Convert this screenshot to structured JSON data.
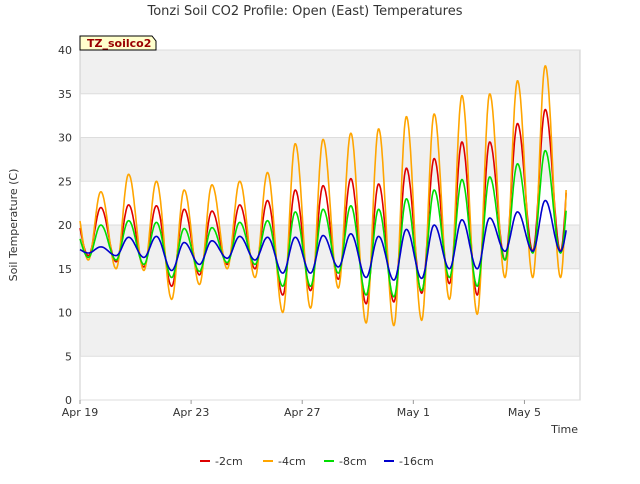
{
  "chart_data": {
    "type": "line",
    "title": "Tonzi Soil CO2 Profile: Open (East) Temperatures",
    "xlabel": "Time",
    "ylabel": "Soil Temperature (C)",
    "badge": "TZ_soilco2",
    "x_tick_labels": [
      "Apr 19",
      "Apr 23",
      "Apr 27",
      "May 1",
      "May 5"
    ],
    "x_tick_days": [
      0,
      4,
      8,
      12,
      16
    ],
    "xlim_days": [
      0,
      18
    ],
    "ylim": [
      0,
      40
    ],
    "y_ticks": [
      0,
      5,
      10,
      15,
      20,
      25,
      30,
      35,
      40
    ],
    "grid": true,
    "legend_position": "bottom",
    "series": [
      {
        "name": "-2cm",
        "color": "#dd0000",
        "daily_max": [
          22.0,
          22.3,
          22.2,
          21.8,
          21.6,
          22.3,
          22.8,
          24.0,
          24.5,
          25.3,
          24.7,
          26.5,
          27.6,
          29.5,
          29.5,
          31.6,
          33.2
        ],
        "daily_min": [
          16.5,
          15.8,
          15.2,
          13.0,
          14.3,
          15.5,
          15.0,
          12.0,
          12.5,
          13.8,
          11.0,
          11.2,
          12.2,
          13.3,
          12.0,
          16.0,
          17.0
        ]
      },
      {
        "name": "-4cm",
        "color": "#ffa500",
        "daily_max": [
          23.8,
          25.8,
          25.0,
          24.0,
          24.6,
          25.0,
          26.0,
          29.3,
          29.8,
          30.5,
          31.0,
          32.4,
          32.7,
          34.8,
          35.0,
          36.5,
          38.2
        ],
        "daily_min": [
          16.0,
          15.0,
          14.8,
          11.5,
          13.2,
          15.0,
          14.0,
          10.0,
          10.5,
          12.8,
          8.8,
          8.5,
          9.1,
          11.5,
          9.8,
          14.0,
          14.0
        ]
      },
      {
        "name": "-8cm",
        "color": "#00dd00",
        "daily_max": [
          20.0,
          20.5,
          20.3,
          19.6,
          19.7,
          20.3,
          20.5,
          21.5,
          21.8,
          22.2,
          21.8,
          23.0,
          24.0,
          25.2,
          25.5,
          27.0,
          28.5
        ],
        "daily_min": [
          16.3,
          16.0,
          15.5,
          14.0,
          14.7,
          15.7,
          15.5,
          13.0,
          13.0,
          14.5,
          12.0,
          11.8,
          12.5,
          14.0,
          13.0,
          16.0,
          16.8
        ]
      },
      {
        "name": "-16cm",
        "color": "#0000cc",
        "daily_max": [
          17.5,
          18.6,
          18.7,
          18.0,
          18.2,
          18.7,
          18.6,
          18.6,
          18.8,
          19.0,
          18.7,
          19.5,
          20.0,
          20.6,
          20.8,
          21.5,
          22.8
        ],
        "daily_min": [
          16.8,
          16.5,
          16.3,
          14.8,
          15.5,
          16.2,
          16.0,
          14.5,
          14.5,
          15.2,
          14.0,
          13.7,
          13.9,
          15.0,
          15.0,
          17.0,
          17.0
        ]
      }
    ]
  }
}
